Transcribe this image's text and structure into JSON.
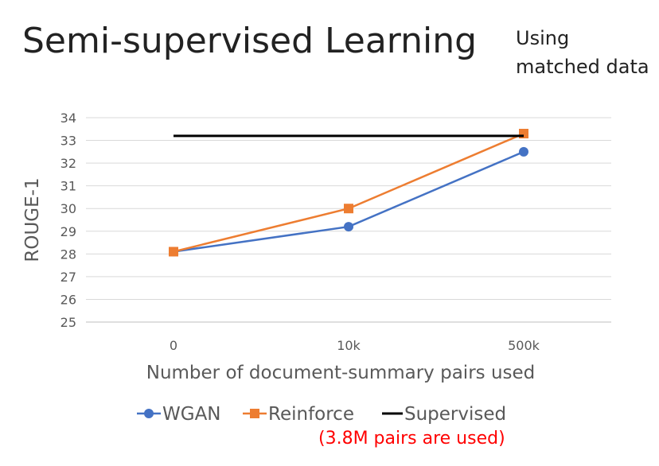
{
  "slide": {
    "title": "Semi-supervised Learning",
    "note_lines": [
      "Using",
      "matched data"
    ],
    "footnote": "(3.8M pairs are used)",
    "footnote_color": "#ff0000"
  },
  "chart_data": {
    "type": "line",
    "title": "",
    "xlabel": "Number of document-summary pairs used",
    "ylabel": "ROUGE-1",
    "categories": [
      "0",
      "10k",
      "500k"
    ],
    "ylim": [
      25,
      34
    ],
    "yticks": [
      25,
      26,
      27,
      28,
      29,
      30,
      31,
      32,
      33,
      34
    ],
    "grid": true,
    "legend_position": "bottom",
    "series": [
      {
        "name": "WGAN",
        "values": [
          28.1,
          29.2,
          32.5
        ],
        "color": "#4472c4",
        "marker": "circle"
      },
      {
        "name": "Reinforce",
        "values": [
          28.1,
          30.0,
          33.3
        ],
        "color": "#ed7d31",
        "marker": "square"
      },
      {
        "name": "Supervised",
        "values": [
          33.2,
          33.2,
          33.2
        ],
        "color": "#000000",
        "marker": "none"
      }
    ]
  }
}
